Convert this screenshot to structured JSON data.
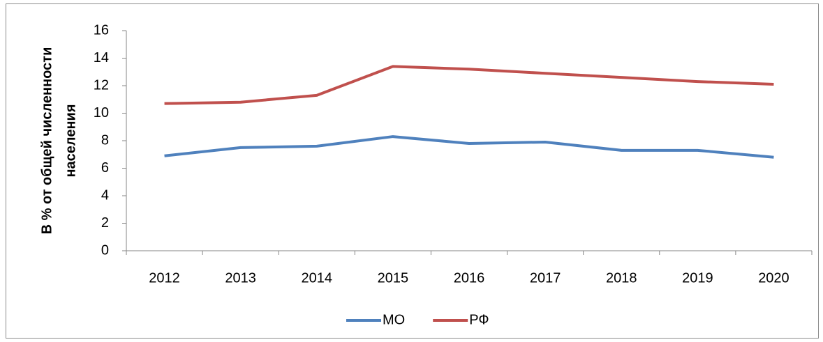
{
  "chart_data": {
    "type": "line",
    "ylabel": [
      "В % от общей численности",
      "населения"
    ],
    "categories": [
      "2012",
      "2013",
      "2014",
      "2015",
      "2016",
      "2017",
      "2018",
      "2019",
      "2020"
    ],
    "series": [
      {
        "name": "МО",
        "color": "#4f81bd",
        "values": [
          6.9,
          7.5,
          7.6,
          8.3,
          7.8,
          7.9,
          7.3,
          7.3,
          6.8
        ]
      },
      {
        "name": "РФ",
        "color": "#c0504d",
        "values": [
          10.7,
          10.8,
          11.3,
          13.4,
          13.2,
          12.9,
          12.6,
          12.3,
          12.1
        ]
      }
    ],
    "ylim": [
      0,
      16
    ],
    "yticks": [
      0,
      2,
      4,
      6,
      8,
      10,
      12,
      14,
      16
    ],
    "grid": false,
    "legend": "bottom"
  }
}
